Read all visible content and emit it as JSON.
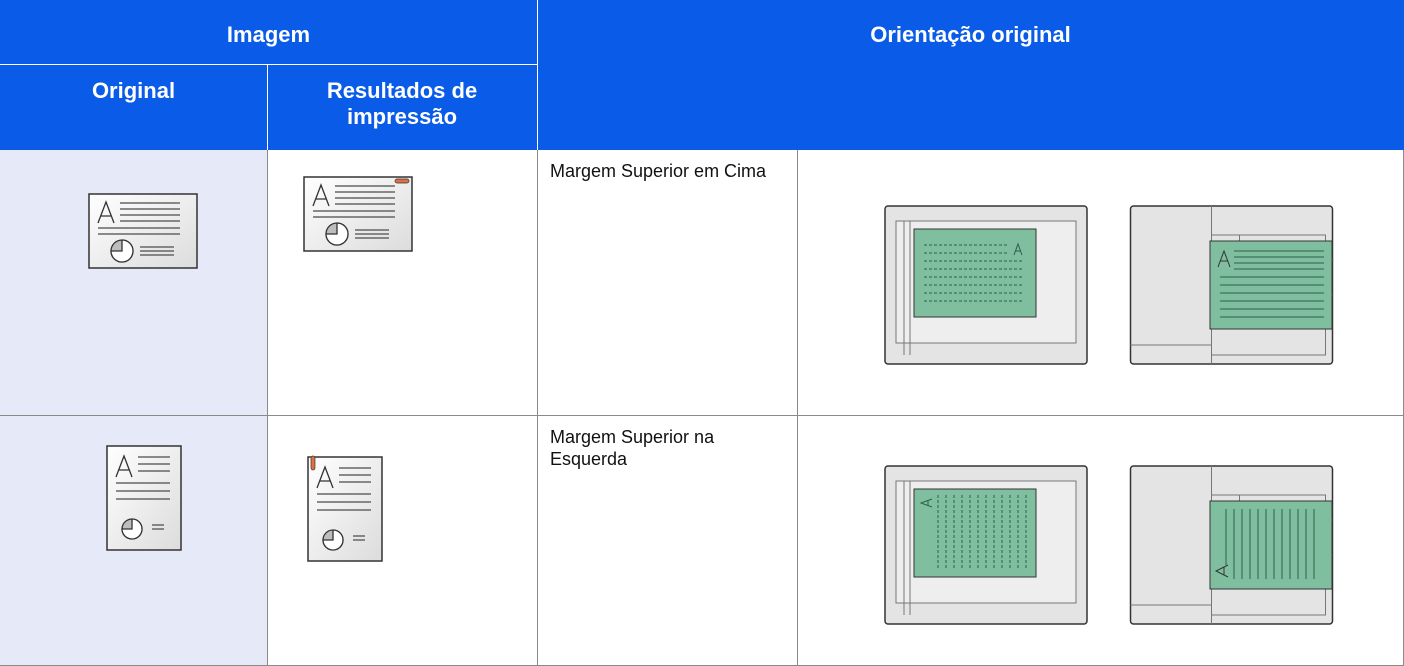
{
  "header": {
    "image": "Imagem",
    "original_orientation": "Orientação original",
    "original": "Original",
    "print_results": "Resultados de impressão"
  },
  "rows": [
    {
      "orientation": "Margem Superior em Cima"
    },
    {
      "orientation": "Margem Superior na Esquerda"
    }
  ]
}
